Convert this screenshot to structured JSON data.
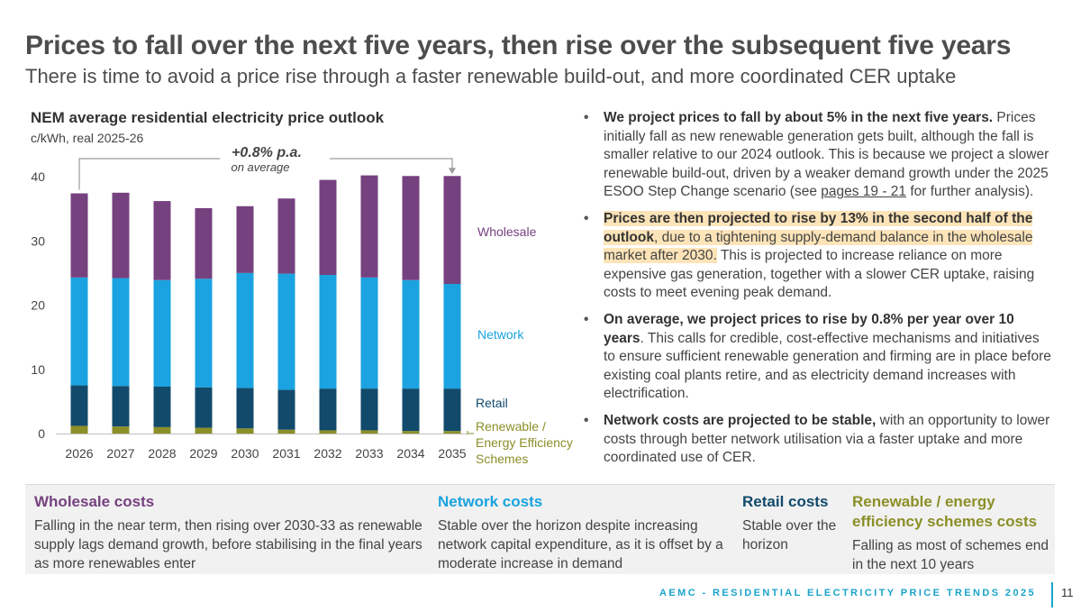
{
  "header": {
    "title": "Prices to fall over the next five years, then rise over the subsequent five years",
    "subtitle": "There is time to avoid a price rise through a faster renewable build-out, and more coordinated CER uptake"
  },
  "colors": {
    "wholesale": "#76417f",
    "network": "#1aa3e0",
    "retail": "#124a6b",
    "renewable": "#8b8f27",
    "accent": "#1aa3c9",
    "highlight": "#fde4b8"
  },
  "chart_data": {
    "type": "bar",
    "stacked": true,
    "title": "NEM average residential electricity price outlook",
    "ylabel": "c/kWh, real 2025-26",
    "ylim": [
      0,
      40
    ],
    "yticks": [
      0,
      10,
      20,
      30,
      40
    ],
    "categories": [
      "2026",
      "2027",
      "2028",
      "2029",
      "2030",
      "2031",
      "2032",
      "2033",
      "2034",
      "2035"
    ],
    "series": [
      {
        "name": "Renewable / Energy Efficiency Schemes",
        "values": [
          1.2,
          1.1,
          1.0,
          0.9,
          0.8,
          0.6,
          0.5,
          0.5,
          0.4,
          0.4
        ]
      },
      {
        "name": "Retail",
        "values": [
          6.3,
          6.3,
          6.3,
          6.3,
          6.3,
          6.2,
          6.5,
          6.5,
          6.6,
          6.6
        ]
      },
      {
        "name": "Network",
        "values": [
          16.8,
          16.8,
          16.6,
          16.9,
          17.9,
          18.1,
          17.7,
          17.3,
          16.9,
          16.3
        ]
      },
      {
        "name": "Wholesale",
        "values": [
          13.1,
          13.3,
          12.3,
          11.0,
          10.4,
          11.7,
          14.8,
          15.9,
          16.2,
          16.8
        ]
      }
    ],
    "series_labels": {
      "wholesale": "Wholesale",
      "network": "Network",
      "retail": "Retail",
      "renewable_line1": "Renewable /",
      "renewable_line2": "Energy Efficiency",
      "renewable_line3": "Schemes"
    },
    "annotation": {
      "main": "+0.8% p.a.",
      "sub": "on average"
    }
  },
  "bullets": [
    {
      "bold": "We project prices to fall by about 5% in the next five years.",
      "text1": " Prices initially fall as new renewable generation gets built, although the fall is smaller relative to our 2024 outlook. This is because we project a slower renewable build-out, driven by a weaker demand growth under the 2025 ESOO Step Change scenario (see ",
      "link": "pages 19 - 21",
      "text2": " for further analysis)."
    },
    {
      "bold": "Prices are then projected to rise by 13% in the second half of the outlook",
      "hl_text": ", due to a tightening supply-demand balance in the wholesale market after 2030.",
      "text": " This is projected to increase reliance on more expensive gas generation, together with a slower CER uptake, raising costs to meet evening peak demand."
    },
    {
      "bold": "On average, we project prices to rise by 0.8% per year over 10 years",
      "text": ". This calls for credible, cost-effective mechanisms and initiatives to ensure sufficient renewable generation and firming are in place before existing coal plants retire, and as electricity demand increases with electrification."
    },
    {
      "bold": "Network costs are projected to be stable,",
      "text": " with an opportunity to lower costs through better network utilisation via a faster uptake and more coordinated use of CER."
    }
  ],
  "bottom_panel": {
    "wholesale": {
      "heading": "Wholesale costs",
      "text": "Falling in the near term, then rising over 2030-33 as renewable supply lags demand growth, before stabilising in the final years as more renewables enter"
    },
    "network": {
      "heading": "Network costs",
      "text": "Stable over the horizon despite increasing network capital expenditure, as it is offset by a moderate increase in demand"
    },
    "retail": {
      "heading": "Retail costs",
      "text": "Stable over the horizon"
    },
    "renewable": {
      "heading": "Renewable / energy efficiency schemes costs",
      "text": "Falling as most of schemes end in the next 10 years"
    }
  },
  "footer": {
    "text": "AEMC - RESIDENTIAL ELECTRICITY PRICE TRENDS 2025",
    "page": "11"
  }
}
